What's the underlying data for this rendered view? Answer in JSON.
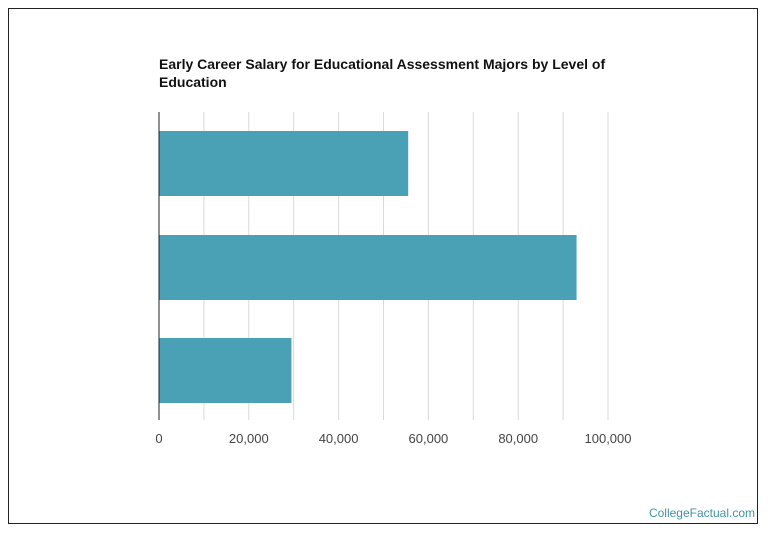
{
  "chart_data": {
    "type": "bar",
    "orientation": "horizontal",
    "title": "Early Career Salary for Educational Assessment Majors by Level of Education",
    "categories": [
      "",
      "",
      ""
    ],
    "values": [
      55500,
      93000,
      29500
    ],
    "xlim": [
      0,
      100000
    ],
    "x_ticks": [
      0,
      20000,
      40000,
      60000,
      80000,
      100000
    ],
    "x_tick_labels": [
      "0",
      "20,000",
      "40,000",
      "60,000",
      "80,000",
      "100,000"
    ],
    "xlabel": "",
    "ylabel": "",
    "grid": true,
    "bar_color": "#4aa0b5",
    "grid_color": "#d9d9d9"
  },
  "watermark": "CollegeFactual.com"
}
